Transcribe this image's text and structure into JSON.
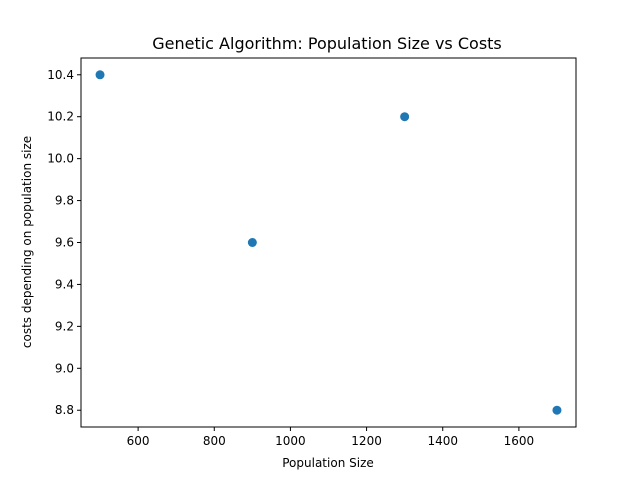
{
  "chart_data": {
    "type": "scatter",
    "title": "Genetic Algorithm: Population Size vs Costs",
    "xlabel": "Population Size",
    "ylabel": "costs depending on population size",
    "x": [
      500,
      900,
      1300,
      1700
    ],
    "y": [
      10.4,
      9.6,
      10.2,
      8.8
    ],
    "xlim": [
      450,
      1750
    ],
    "ylim": [
      8.72,
      10.48
    ],
    "xticks": [
      600,
      800,
      1000,
      1200,
      1400,
      1600
    ],
    "yticks": [
      8.8,
      9.0,
      9.2,
      9.4,
      9.6,
      9.8,
      10.0,
      10.2,
      10.4
    ],
    "xtick_labels": [
      "600",
      "800",
      "1000",
      "1200",
      "1400",
      "1600"
    ],
    "ytick_labels": [
      "8.8",
      "9.0",
      "9.2",
      "9.4",
      "9.6",
      "9.8",
      "10.0",
      "10.2",
      "10.4"
    ],
    "marker_color": "#1f77b4",
    "grid": false,
    "legend": "none"
  }
}
